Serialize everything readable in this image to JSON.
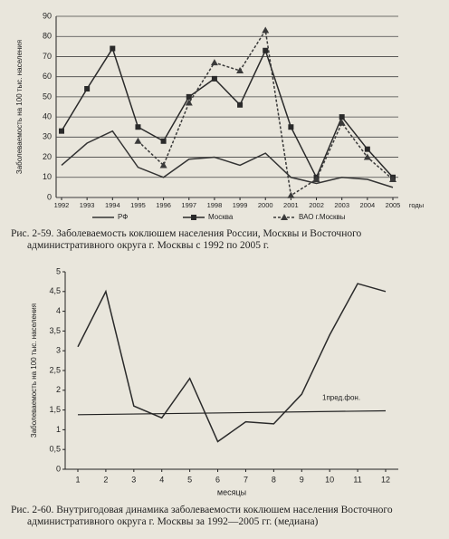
{
  "chart_data": [
    {
      "type": "line",
      "caption": "Рис. 2-59. Заболеваемость коклюшем населения России, Москвы и Восточного административного округа г. Москвы с 1992 по 2005 г.",
      "y_label": "Заболеваемость на 100 тыс. населения",
      "x_label": "годы",
      "categories": [
        "1992",
        "1993",
        "1994",
        "1995",
        "1996",
        "1997",
        "1998",
        "1999",
        "2000",
        "2001",
        "2002",
        "2003",
        "2004",
        "2005"
      ],
      "series": [
        {
          "name": "РФ",
          "color": "#333333",
          "marker": "none",
          "dash": false,
          "values": [
            16,
            27,
            33,
            15,
            10,
            19,
            20,
            16,
            22,
            10,
            7,
            10,
            9,
            5
          ]
        },
        {
          "name": "Москва",
          "color": "#2a2a2a",
          "marker": "square",
          "dash": false,
          "values": [
            33,
            54,
            74,
            35,
            28,
            50,
            59,
            46,
            73,
            35,
            10,
            40,
            24,
            10
          ]
        },
        {
          "name": "ВАО г.Москвы",
          "color": "#3a3a3a",
          "marker": "triangle",
          "dash": true,
          "values": [
            null,
            null,
            null,
            28,
            16,
            47,
            67,
            63,
            83,
            1,
            9,
            37,
            20,
            9
          ]
        }
      ],
      "ylim": [
        0,
        90
      ],
      "yticks": [
        0,
        10,
        20,
        30,
        40,
        50,
        60,
        70,
        80,
        90
      ],
      "grid": true,
      "legend": "bottom"
    },
    {
      "type": "line",
      "caption": "Рис. 2-60. Внутригодовая динамика заболеваемости коклюшем населения Восточного административного округа г. Москвы за 1992—2005 гг. (медиана)",
      "y_label": "Заболеваемость на 100 тыс. населения",
      "x_label": "месяцы",
      "categories": [
        "1",
        "2",
        "3",
        "4",
        "5",
        "6",
        "7",
        "8",
        "9",
        "10",
        "11",
        "12"
      ],
      "series": [
        {
          "color": "#2a2a2a",
          "marker": "none",
          "dash": false,
          "values": [
            3.1,
            4.5,
            1.6,
            1.3,
            2.3,
            0.7,
            1.2,
            1.15,
            1.9,
            3.4,
            4.7,
            4.5
          ]
        }
      ],
      "threshold": {
        "label": "1пред.фон.",
        "values": [
          1.38,
          1.48
        ]
      },
      "ylim": [
        0,
        5
      ],
      "yticks": [
        0,
        {
          "value": 0.5,
          "label": "0,5"
        },
        1,
        {
          "value": 1.5,
          "label": "1,5"
        },
        2,
        {
          "value": 2.5,
          "label": "2,5"
        },
        3,
        {
          "value": 3.5,
          "label": "3,5"
        },
        4,
        {
          "value": 4.5,
          "label": "4,5"
        },
        5
      ],
      "grid": false
    }
  ]
}
